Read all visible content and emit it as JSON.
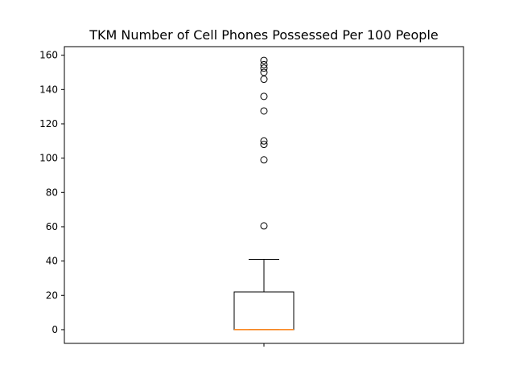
{
  "chart_data": {
    "type": "box",
    "title": "TKM Number of Cell Phones Possessed Per 100 People",
    "xlabel": "",
    "ylabel": "",
    "ylim": [
      -8,
      165
    ],
    "yticks": [
      0,
      20,
      40,
      60,
      80,
      100,
      120,
      140,
      160
    ],
    "grid": false,
    "box": {
      "whisker_low": 0,
      "q1": 0,
      "median": 0,
      "q3": 22,
      "whisker_high": 41,
      "outliers": [
        60.5,
        99,
        108,
        110,
        127.5,
        136,
        146,
        150,
        152.5,
        154.5,
        157
      ]
    },
    "colors": {
      "box": "#000000",
      "median": "#ff7f0e",
      "outlier_edge": "#000000"
    }
  }
}
